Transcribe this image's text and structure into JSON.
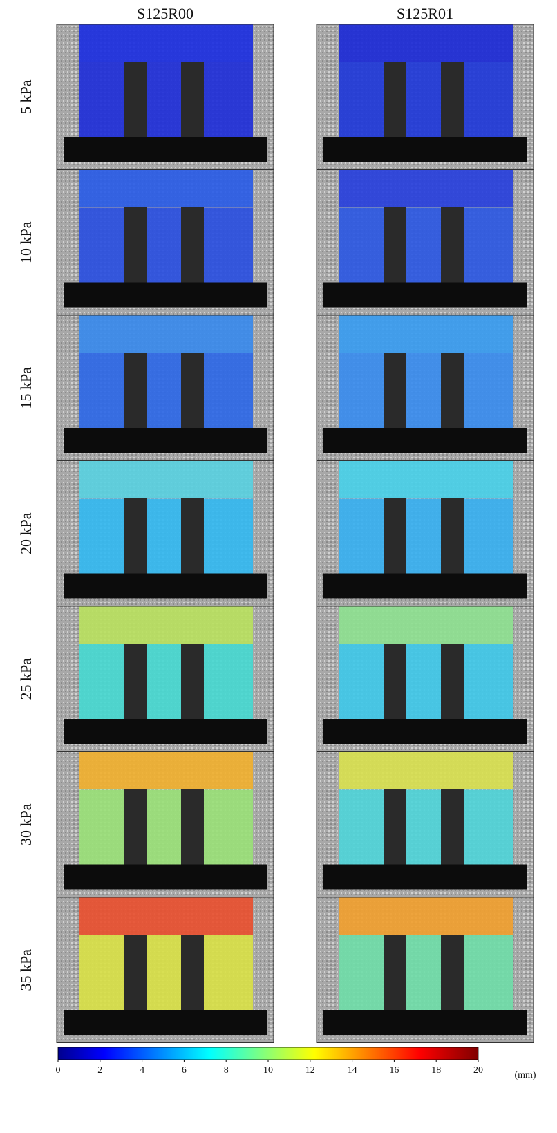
{
  "figure": {
    "columns": [
      "S125R00",
      "S125R01"
    ],
    "rows": [
      "5 kPa",
      "10 kPa",
      "15 kPa",
      "20 kPa",
      "25 kPa",
      "30 kPa",
      "35 kPa"
    ],
    "colorbar": {
      "lim": [
        0,
        20
      ],
      "ticks": [
        0,
        2,
        4,
        6,
        8,
        10,
        12,
        14,
        16,
        18,
        20
      ],
      "unit": "(mm)"
    }
  }
}
